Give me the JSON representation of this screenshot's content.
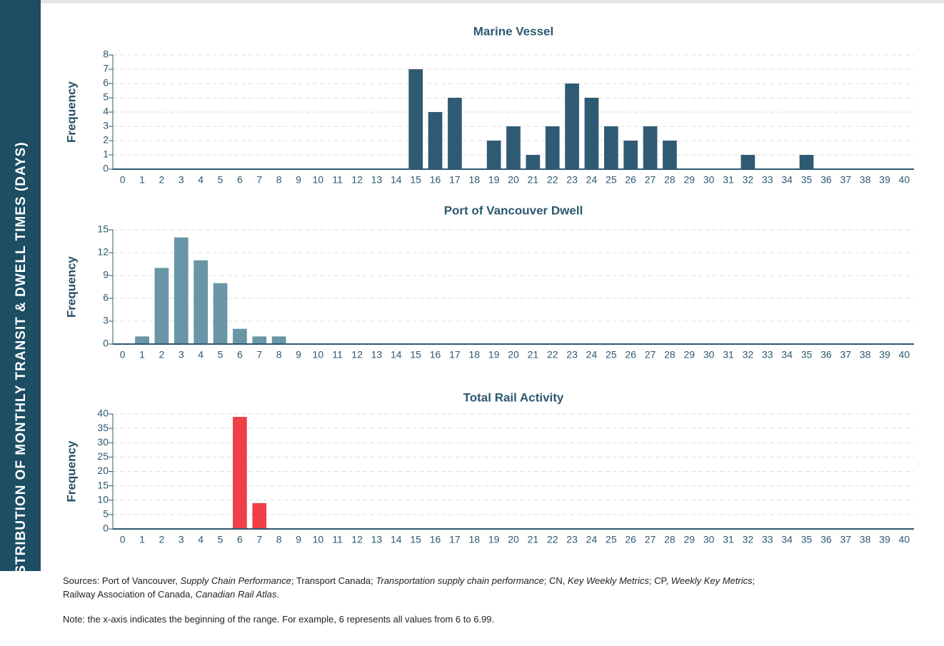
{
  "side_title": "DISTRIBUTION OF MONTHLY TRANSIT & DWELL TIMES (DAYS)",
  "chart_data": [
    {
      "type": "bar",
      "title": "Marine Vessel",
      "ylabel": "Frequency",
      "color": "#2f5a73",
      "categories": [
        0,
        1,
        2,
        3,
        4,
        5,
        6,
        7,
        8,
        9,
        10,
        11,
        12,
        13,
        14,
        15,
        16,
        17,
        18,
        19,
        20,
        21,
        22,
        23,
        24,
        25,
        26,
        27,
        28,
        29,
        30,
        31,
        32,
        33,
        34,
        35,
        36,
        37,
        38,
        39,
        40
      ],
      "values": [
        0,
        0,
        0,
        0,
        0,
        0,
        0,
        0,
        0,
        0,
        0,
        0,
        0,
        0,
        0,
        7,
        4,
        5,
        0,
        2,
        3,
        1,
        3,
        6,
        5,
        3,
        2,
        3,
        2,
        0,
        0,
        0,
        1,
        0,
        0,
        1,
        0,
        0,
        0,
        0,
        0
      ],
      "ylim": [
        0,
        8
      ],
      "yticks": [
        0,
        1,
        2,
        3,
        4,
        5,
        6,
        7,
        8
      ],
      "grid": true
    },
    {
      "type": "bar",
      "title": "Port of Vancouver Dwell",
      "ylabel": "Frequency",
      "color": "#6896a6",
      "categories": [
        0,
        1,
        2,
        3,
        4,
        5,
        6,
        7,
        8,
        9,
        10,
        11,
        12,
        13,
        14,
        15,
        16,
        17,
        18,
        19,
        20,
        21,
        22,
        23,
        24,
        25,
        26,
        27,
        28,
        29,
        30,
        31,
        32,
        33,
        34,
        35,
        36,
        37,
        38,
        39,
        40
      ],
      "values": [
        0,
        1,
        10,
        14,
        11,
        8,
        2,
        1,
        1,
        0,
        0,
        0,
        0,
        0,
        0,
        0,
        0,
        0,
        0,
        0,
        0,
        0,
        0,
        0,
        0,
        0,
        0,
        0,
        0,
        0,
        0,
        0,
        0,
        0,
        0,
        0,
        0,
        0,
        0,
        0,
        0
      ],
      "ylim": [
        0,
        15
      ],
      "yticks": [
        0,
        3,
        6,
        9,
        12,
        15
      ],
      "grid": true
    },
    {
      "type": "bar",
      "title": "Total Rail Activity",
      "ylabel": "Frequency",
      "color": "#ef4048",
      "categories": [
        0,
        1,
        2,
        3,
        4,
        5,
        6,
        7,
        8,
        9,
        10,
        11,
        12,
        13,
        14,
        15,
        16,
        17,
        18,
        19,
        20,
        21,
        22,
        23,
        24,
        25,
        26,
        27,
        28,
        29,
        30,
        31,
        32,
        33,
        34,
        35,
        36,
        37,
        38,
        39,
        40
      ],
      "values": [
        0,
        0,
        0,
        0,
        0,
        0,
        39,
        9,
        0,
        0,
        0,
        0,
        0,
        0,
        0,
        0,
        0,
        0,
        0,
        0,
        0,
        0,
        0,
        0,
        0,
        0,
        0,
        0,
        0,
        0,
        0,
        0,
        0,
        0,
        0,
        0,
        0,
        0,
        0,
        0,
        0
      ],
      "ylim": [
        0,
        40
      ],
      "yticks": [
        0,
        5,
        10,
        15,
        20,
        25,
        30,
        35,
        40
      ],
      "grid": true
    }
  ],
  "sources": [
    [
      {
        "text": "Sources: Port of Vancouver, ",
        "italic": false
      },
      {
        "text": "Supply Chain Performance",
        "italic": true
      },
      {
        "text": "; Transport Canada; ",
        "italic": false
      },
      {
        "text": "Transportation supply chain performance",
        "italic": true
      },
      {
        "text": "; CN, ",
        "italic": false
      },
      {
        "text": "Key Weekly Metrics",
        "italic": true
      },
      {
        "text": "; CP, ",
        "italic": false
      },
      {
        "text": "Weekly Key Metrics",
        "italic": true
      },
      {
        "text": ";",
        "italic": false
      }
    ],
    [
      {
        "text": "Railway Association of Canada, ",
        "italic": false
      },
      {
        "text": "Canadian Rail Atlas",
        "italic": true
      },
      {
        "text": ".",
        "italic": false
      }
    ]
  ],
  "note": "Note: the x-axis indicates the beginning of the range. For example, 6 represents all values from 6 to 6.99."
}
